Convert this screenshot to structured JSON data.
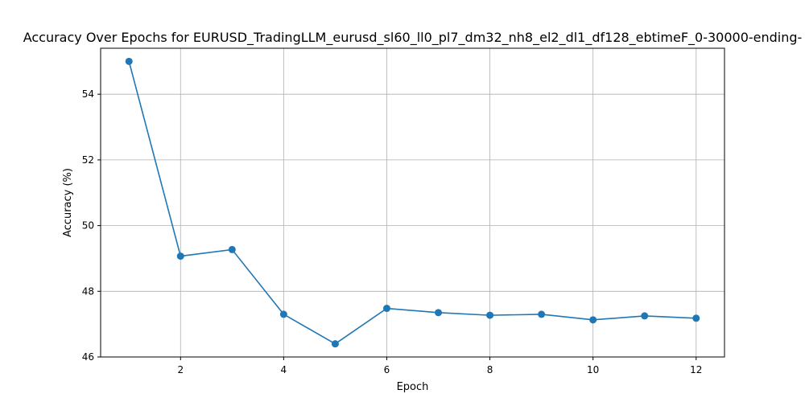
{
  "chart_data": {
    "type": "line",
    "title": "Accuracy Over Epochs for EURUSD_TradingLLM_eurusd_sl60_ll0_pl7_dm32_nh8_el2_dl1_df128_ebtimeF_0-30000-ending-",
    "xlabel": "Epoch",
    "ylabel": "Accuracy (%)",
    "xlim": [
      0.45,
      12.55
    ],
    "ylim": [
      46,
      55.4
    ],
    "xticks": [
      2,
      4,
      6,
      8,
      10,
      12
    ],
    "yticks": [
      46,
      48,
      50,
      52,
      54
    ],
    "grid": true,
    "series": [
      {
        "color": "#1f77b4",
        "x": [
          1,
          2,
          3,
          4,
          5,
          6,
          7,
          8,
          9,
          10,
          11,
          12
        ],
        "y": [
          55.0,
          49.07,
          49.27,
          47.3,
          46.4,
          47.48,
          47.35,
          47.27,
          47.3,
          47.13,
          47.25,
          47.18
        ]
      }
    ]
  }
}
